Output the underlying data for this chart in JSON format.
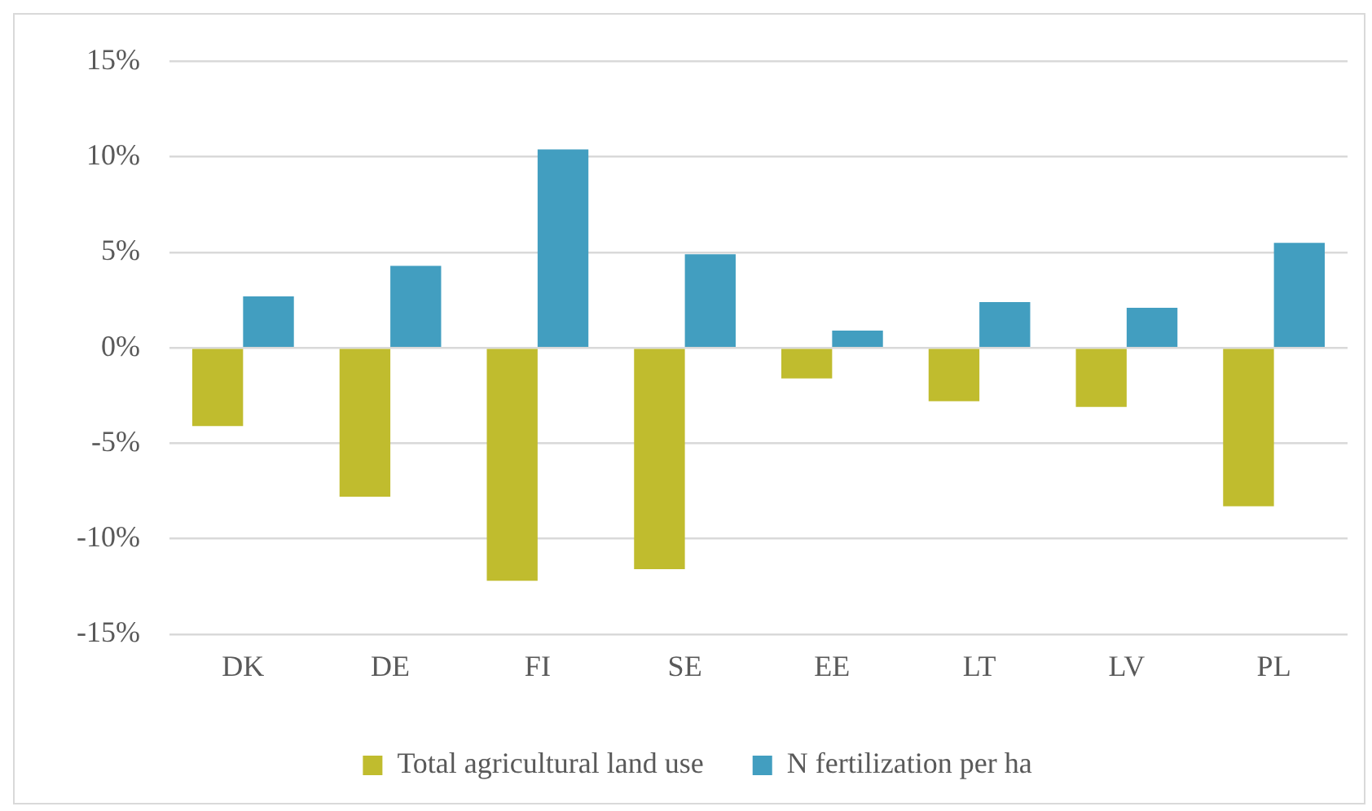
{
  "chart_data": {
    "type": "bar",
    "categories": [
      "DK",
      "DE",
      "FI",
      "SE",
      "EE",
      "LT",
      "LV",
      "PL"
    ],
    "series": [
      {
        "name": "Total agricultural land use",
        "color": "#c0bc2e",
        "values": [
          -4.1,
          -7.8,
          -12.2,
          -11.6,
          -1.6,
          -2.8,
          -3.1,
          -8.3
        ]
      },
      {
        "name": "N fertilization per ha",
        "color": "#429ec0",
        "values": [
          2.7,
          4.3,
          10.4,
          4.9,
          0.9,
          2.4,
          2.1,
          5.5
        ]
      }
    ],
    "ylim": [
      -15,
      15
    ],
    "yticks": [
      {
        "value": -15,
        "label": "-15%"
      },
      {
        "value": -10,
        "label": "-10%"
      },
      {
        "value": -5,
        "label": "-5%"
      },
      {
        "value": 0,
        "label": "0%"
      },
      {
        "value": 5,
        "label": "5%"
      },
      {
        "value": 10,
        "label": "10%"
      },
      {
        "value": 15,
        "label": "15%"
      }
    ],
    "grid": "y",
    "legend": "bottom"
  }
}
